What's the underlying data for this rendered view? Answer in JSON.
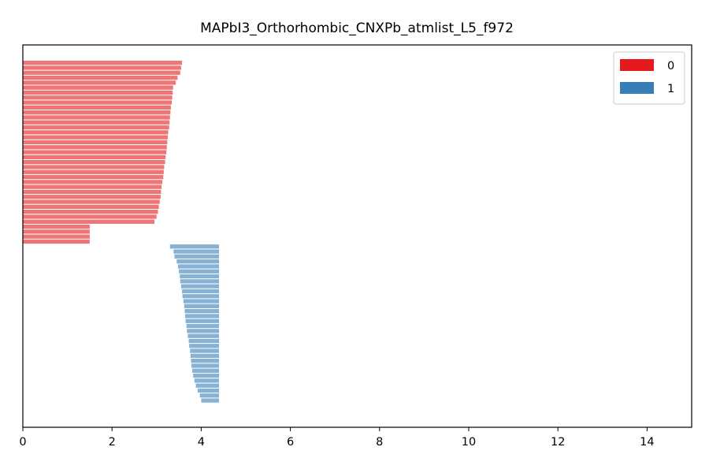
{
  "chart_data": {
    "type": "bar",
    "orientation": "horizontal",
    "title": "MAPbI3_Orthorhombic_CNXPb_atmlist_L5_f972",
    "xlabel": "",
    "ylabel": "",
    "xlim": [
      0,
      15
    ],
    "xticks": [
      0,
      2,
      4,
      6,
      8,
      10,
      12,
      14
    ],
    "xtick_labels": [
      "0",
      "2",
      "4",
      "6",
      "8",
      "10",
      "12",
      "14"
    ],
    "yticks_visible": false,
    "grid": false,
    "legend_position": "top-right",
    "colors": {
      "0": "#e41a1c",
      "1": "#377eb8"
    },
    "bar_alpha": 0.6,
    "series": [
      {
        "name": "0",
        "color": "#e41a1c",
        "bars": [
          {
            "left": 0,
            "right": 3.57
          },
          {
            "left": 0,
            "right": 3.55
          },
          {
            "left": 0,
            "right": 3.53
          },
          {
            "left": 0,
            "right": 3.47
          },
          {
            "left": 0,
            "right": 3.43
          },
          {
            "left": 0,
            "right": 3.37
          },
          {
            "left": 0,
            "right": 3.36
          },
          {
            "left": 0,
            "right": 3.35
          },
          {
            "left": 0,
            "right": 3.34
          },
          {
            "left": 0,
            "right": 3.32
          },
          {
            "left": 0,
            "right": 3.31
          },
          {
            "left": 0,
            "right": 3.3
          },
          {
            "left": 0,
            "right": 3.29
          },
          {
            "left": 0,
            "right": 3.28
          },
          {
            "left": 0,
            "right": 3.26
          },
          {
            "left": 0,
            "right": 3.25
          },
          {
            "left": 0,
            "right": 3.24
          },
          {
            "left": 0,
            "right": 3.23
          },
          {
            "left": 0,
            "right": 3.22
          },
          {
            "left": 0,
            "right": 3.2
          },
          {
            "left": 0,
            "right": 3.19
          },
          {
            "left": 0,
            "right": 3.17
          },
          {
            "left": 0,
            "right": 3.16
          },
          {
            "left": 0,
            "right": 3.15
          },
          {
            "left": 0,
            "right": 3.13
          },
          {
            "left": 0,
            "right": 3.11
          },
          {
            "left": 0,
            "right": 3.1
          },
          {
            "left": 0,
            "right": 3.09
          },
          {
            "left": 0,
            "right": 3.07
          },
          {
            "left": 0,
            "right": 3.05
          },
          {
            "left": 0,
            "right": 3.03
          },
          {
            "left": 0,
            "right": 3.0
          },
          {
            "left": 0,
            "right": 2.95
          },
          {
            "left": 0,
            "right": 1.5
          },
          {
            "left": 0,
            "right": 1.5
          },
          {
            "left": 0,
            "right": 1.5
          },
          {
            "left": 0,
            "right": 1.5
          }
        ]
      },
      {
        "name": "1",
        "color": "#377eb8",
        "bars": [
          {
            "left": 3.3,
            "right": 4.4
          },
          {
            "left": 3.38,
            "right": 4.4
          },
          {
            "left": 3.4,
            "right": 4.4
          },
          {
            "left": 3.45,
            "right": 4.4
          },
          {
            "left": 3.48,
            "right": 4.4
          },
          {
            "left": 3.5,
            "right": 4.4
          },
          {
            "left": 3.52,
            "right": 4.4
          },
          {
            "left": 3.53,
            "right": 4.4
          },
          {
            "left": 3.55,
            "right": 4.4
          },
          {
            "left": 3.57,
            "right": 4.4
          },
          {
            "left": 3.58,
            "right": 4.4
          },
          {
            "left": 3.6,
            "right": 4.4
          },
          {
            "left": 3.62,
            "right": 4.4
          },
          {
            "left": 3.63,
            "right": 4.4
          },
          {
            "left": 3.64,
            "right": 4.4
          },
          {
            "left": 3.65,
            "right": 4.4
          },
          {
            "left": 3.67,
            "right": 4.4
          },
          {
            "left": 3.68,
            "right": 4.4
          },
          {
            "left": 3.7,
            "right": 4.4
          },
          {
            "left": 3.72,
            "right": 4.4
          },
          {
            "left": 3.73,
            "right": 4.4
          },
          {
            "left": 3.75,
            "right": 4.4
          },
          {
            "left": 3.76,
            "right": 4.4
          },
          {
            "left": 3.77,
            "right": 4.4
          },
          {
            "left": 3.78,
            "right": 4.4
          },
          {
            "left": 3.8,
            "right": 4.4
          },
          {
            "left": 3.82,
            "right": 4.4
          },
          {
            "left": 3.85,
            "right": 4.4
          },
          {
            "left": 3.88,
            "right": 4.4
          },
          {
            "left": 3.92,
            "right": 4.4
          },
          {
            "left": 3.97,
            "right": 4.4
          },
          {
            "left": 4.0,
            "right": 4.4
          }
        ]
      }
    ]
  }
}
